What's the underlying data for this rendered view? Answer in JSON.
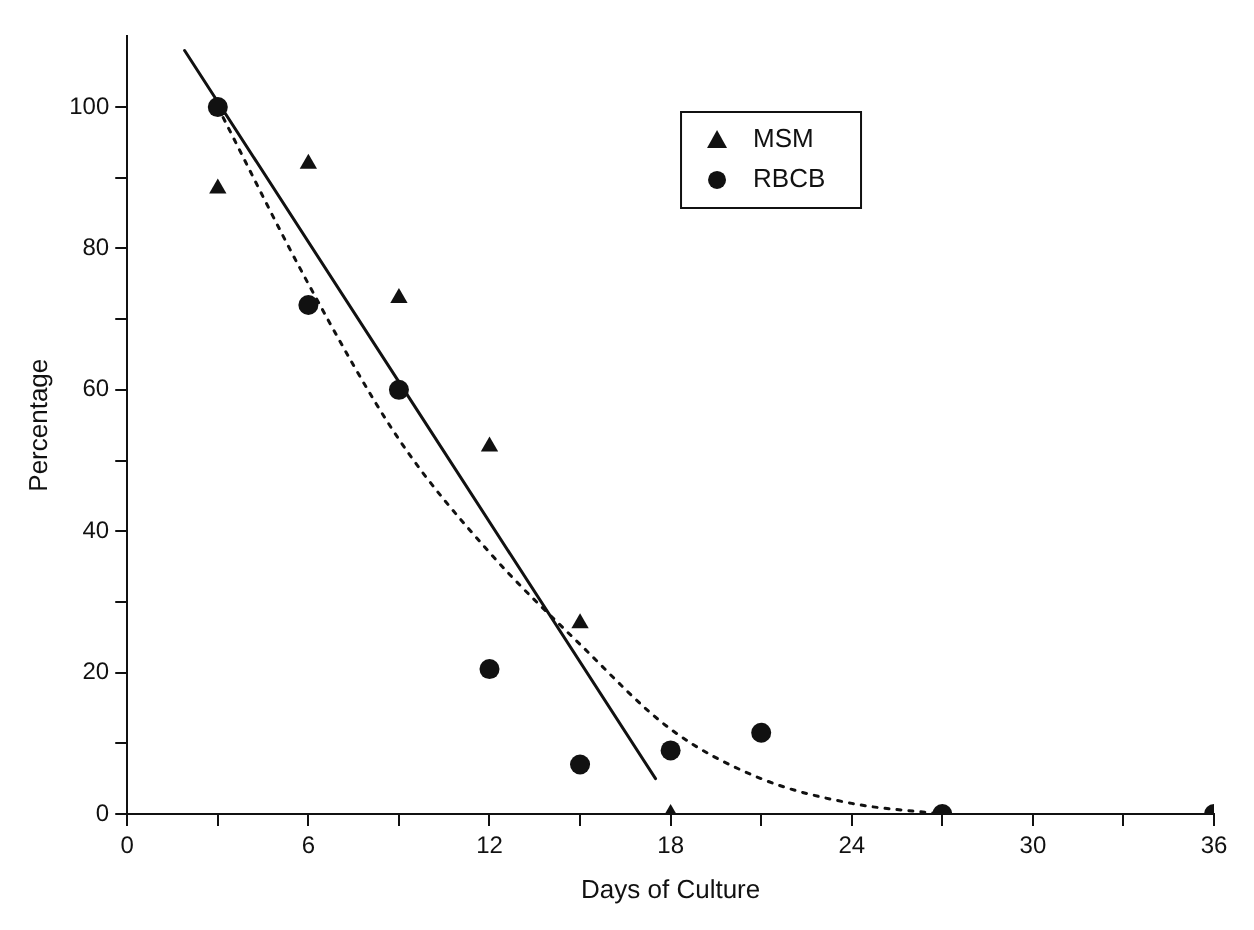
{
  "chart_data": {
    "type": "scatter",
    "xlabel": "Days of Culture",
    "ylabel": "Percentage",
    "xlim": [
      0,
      36
    ],
    "ylim": [
      0,
      110
    ],
    "xticks": [
      0,
      {
        "value": 3,
        "label": null
      },
      6,
      {
        "value": 9,
        "label": null
      },
      12,
      {
        "value": 15,
        "label": null
      },
      18,
      {
        "value": 21,
        "label": null
      },
      24,
      {
        "value": 27,
        "label": null
      },
      30,
      {
        "value": 33,
        "label": null
      },
      36
    ],
    "yticks": [
      0,
      {
        "value": 10,
        "label": null
      },
      20,
      {
        "value": 30,
        "label": null
      },
      40,
      {
        "value": 50,
        "label": null
      },
      60,
      {
        "value": 70,
        "label": null
      },
      80,
      {
        "value": 90,
        "label": null
      },
      100
    ],
    "grid": false,
    "legend": "top right",
    "series": [
      {
        "name": "MSM",
        "marker": "triangle",
        "color": "#111111",
        "x": [
          3,
          6,
          9,
          12,
          15,
          18
        ],
        "values": [
          88.5,
          92,
          73,
          52,
          27,
          0
        ]
      },
      {
        "name": "RBCB",
        "marker": "circle",
        "color": "#111111",
        "x": [
          3,
          6,
          9,
          12,
          15,
          18,
          21,
          27,
          36
        ],
        "values": [
          100,
          72,
          60,
          20.5,
          7,
          9,
          11.5,
          0,
          0
        ]
      },
      {
        "type": "line",
        "line_style": "solid",
        "marker": "none",
        "color": "#111111",
        "x": [
          1.9,
          17.5
        ],
        "values": [
          108,
          5
        ]
      },
      {
        "type": "line",
        "line_style": "dotted",
        "marker": "none",
        "color": "#111111",
        "x": [
          3,
          6,
          9,
          12,
          15,
          18,
          21,
          24,
          27
        ],
        "values": [
          100,
          75,
          53,
          37,
          24,
          12,
          5,
          1.5,
          0
        ]
      }
    ]
  }
}
